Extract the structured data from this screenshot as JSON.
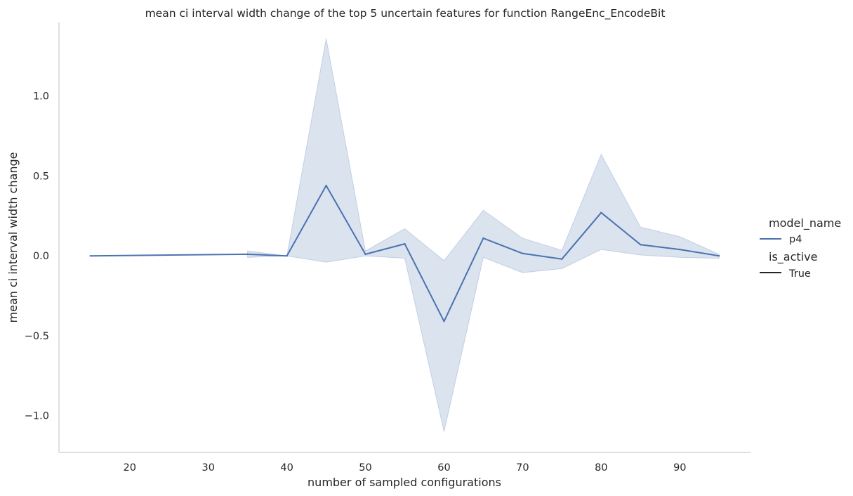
{
  "chart_data": {
    "type": "line",
    "title": "mean ci interval width change of the top 5 uncertain features for function RangeEnc_EncodeBit",
    "xlabel": "number of sampled configurations",
    "ylabel": "mean ci interval width change",
    "xlim": [
      11,
      99
    ],
    "ylim": [
      -1.23,
      1.46
    ],
    "xticks": [
      20,
      30,
      40,
      50,
      60,
      70,
      80,
      90
    ],
    "yticks": [
      -1.0,
      -0.5,
      0.0,
      0.5,
      1.0
    ],
    "xtick_labels": [
      "20",
      "30",
      "40",
      "50",
      "60",
      "70",
      "80",
      "90"
    ],
    "ytick_labels": [
      "−1.0",
      "−0.5",
      "0.0",
      "0.5",
      "1.0"
    ],
    "grid": false,
    "legend_position": "right",
    "legend": {
      "hue_title": "model_name",
      "hue_entries": [
        {
          "label": "p4",
          "color": "#4c72b0"
        }
      ],
      "style_title": "is_active",
      "style_entries": [
        {
          "label": "True",
          "color": "#262626"
        }
      ]
    },
    "series": [
      {
        "name": "p4",
        "color": "#4c72b0",
        "x": [
          15,
          35,
          40,
          45,
          50,
          55,
          60,
          65,
          70,
          75,
          80,
          85,
          90,
          95
        ],
        "y": [
          0.0,
          0.01,
          0.0,
          0.44,
          0.01,
          0.075,
          -0.41,
          0.11,
          0.015,
          -0.02,
          0.27,
          0.07,
          0.04,
          0.0
        ],
        "ci_lower": [
          null,
          -0.01,
          0.0,
          -0.04,
          0.0,
          -0.015,
          -1.1,
          -0.01,
          -0.105,
          -0.08,
          0.04,
          0.005,
          -0.01,
          -0.015
        ],
        "ci_upper": [
          null,
          0.03,
          0.0,
          1.36,
          0.03,
          0.17,
          -0.03,
          0.285,
          0.11,
          0.035,
          0.635,
          0.18,
          0.12,
          0.01
        ]
      }
    ]
  }
}
